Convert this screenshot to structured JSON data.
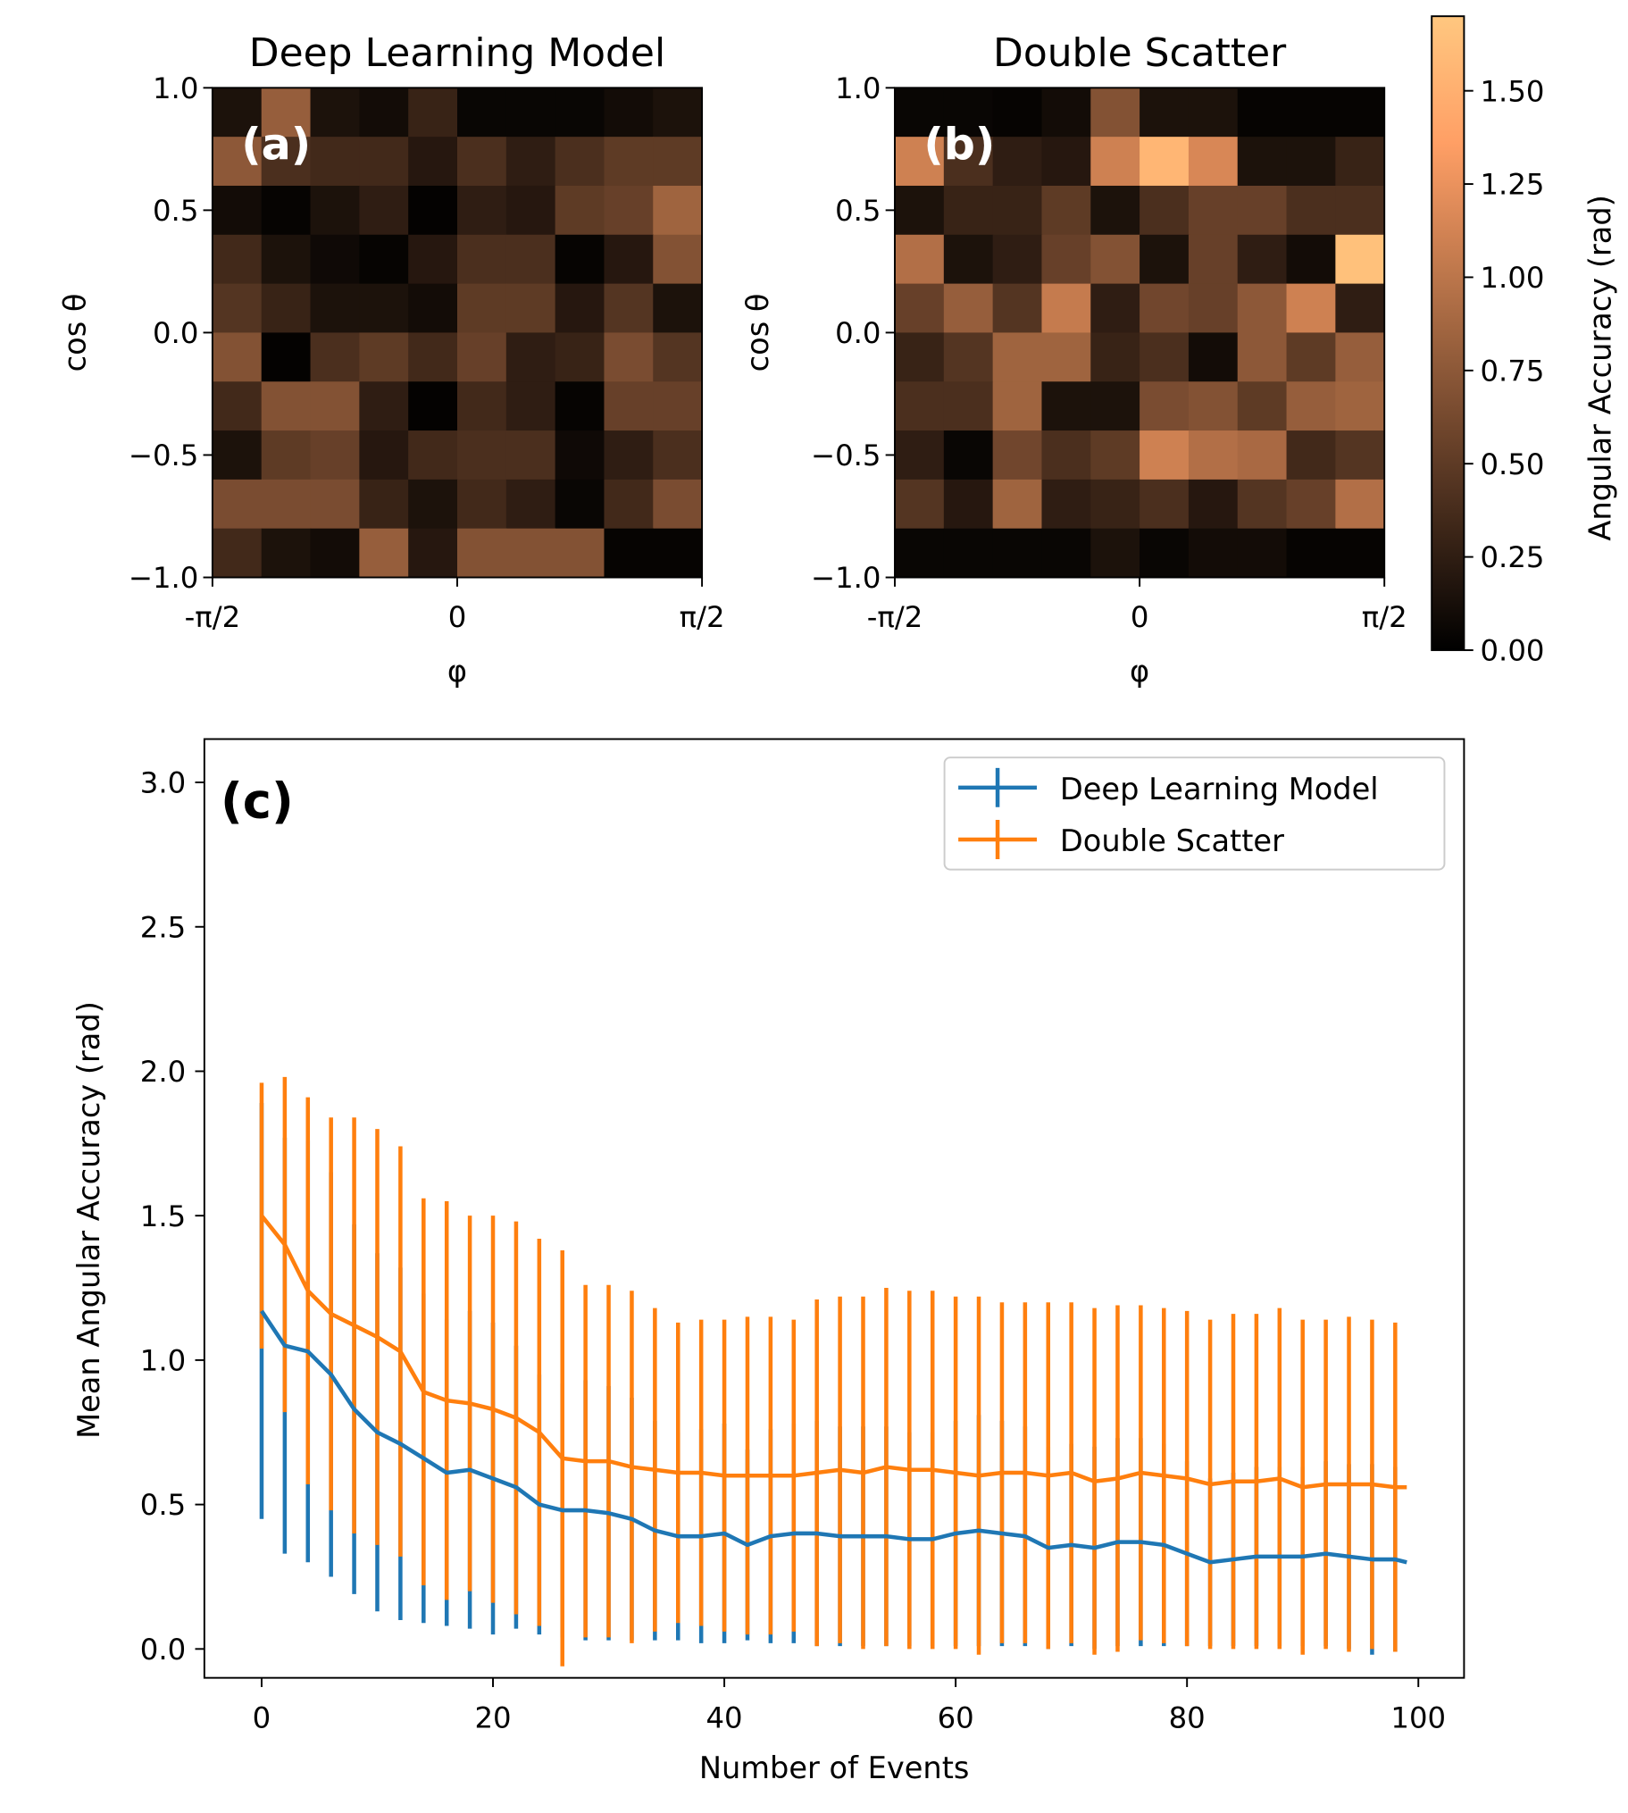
{
  "chart_data": [
    {
      "type": "heatmap",
      "title": "Deep Learning Model",
      "panel_label": "(a)",
      "xlabel": "φ",
      "ylabel": "cos θ",
      "colormap": "copper",
      "clim": [
        0,
        1.7
      ],
      "xlim": [
        -1.5708,
        1.5708
      ],
      "ylim": [
        -1,
        1
      ],
      "xticks": [
        {
          "value": -1.5708,
          "label": "-π/2"
        },
        0,
        {
          "value": 1.5708,
          "label": "π/2"
        }
      ],
      "yticks": [
        {
          "value": -1,
          "label": "−1.0"
        },
        {
          "value": -0.5,
          "label": "−0.5"
        },
        {
          "value": 0,
          "label": "0.0"
        },
        {
          "value": 0.5,
          "label": "0.5"
        },
        {
          "value": 1,
          "label": "1.0"
        }
      ],
      "values": [
        [
          0.15,
          0.8,
          0.15,
          0.1,
          0.3,
          0.05,
          0.05,
          0.05,
          0.1,
          0.15
        ],
        [
          0.75,
          0.4,
          0.35,
          0.35,
          0.2,
          0.4,
          0.25,
          0.4,
          0.5,
          0.5
        ],
        [
          0.1,
          0.03,
          0.15,
          0.25,
          0.02,
          0.25,
          0.2,
          0.5,
          0.55,
          0.85
        ],
        [
          0.35,
          0.15,
          0.08,
          0.03,
          0.2,
          0.4,
          0.4,
          0.03,
          0.2,
          0.7
        ],
        [
          0.45,
          0.3,
          0.15,
          0.15,
          0.1,
          0.5,
          0.5,
          0.2,
          0.45,
          0.15
        ],
        [
          0.7,
          0.02,
          0.4,
          0.5,
          0.35,
          0.55,
          0.25,
          0.3,
          0.65,
          0.45
        ],
        [
          0.35,
          0.7,
          0.7,
          0.25,
          0.02,
          0.35,
          0.25,
          0.03,
          0.55,
          0.55
        ],
        [
          0.15,
          0.5,
          0.55,
          0.2,
          0.35,
          0.4,
          0.4,
          0.08,
          0.25,
          0.4
        ],
        [
          0.65,
          0.65,
          0.65,
          0.3,
          0.15,
          0.35,
          0.25,
          0.05,
          0.35,
          0.65
        ],
        [
          0.35,
          0.15,
          0.1,
          0.8,
          0.2,
          0.7,
          0.7,
          0.7,
          0.03,
          0.03
        ]
      ]
    },
    {
      "type": "heatmap",
      "title": "Double Scatter",
      "panel_label": "(b)",
      "xlabel": "φ",
      "ylabel": "cos θ",
      "colormap": "copper",
      "clim": [
        0,
        1.7
      ],
      "xlim": [
        -1.5708,
        1.5708
      ],
      "ylim": [
        -1,
        1
      ],
      "xticks": [
        {
          "value": -1.5708,
          "label": "-π/2"
        },
        0,
        {
          "value": 1.5708,
          "label": "π/2"
        }
      ],
      "yticks": [
        {
          "value": -1,
          "label": "−1.0"
        },
        {
          "value": -0.5,
          "label": "−0.5"
        },
        {
          "value": 0,
          "label": "0.0"
        },
        {
          "value": 0.5,
          "label": "0.5"
        },
        {
          "value": 1,
          "label": "1.0"
        }
      ],
      "values": [
        [
          0.05,
          0.05,
          0.03,
          0.1,
          0.7,
          0.15,
          0.15,
          0.03,
          0.03,
          0.03
        ],
        [
          1.1,
          0.4,
          0.25,
          0.2,
          1.1,
          1.55,
          1.15,
          0.15,
          0.15,
          0.3
        ],
        [
          0.15,
          0.3,
          0.3,
          0.5,
          0.15,
          0.4,
          0.55,
          0.55,
          0.4,
          0.4
        ],
        [
          0.95,
          0.15,
          0.25,
          0.55,
          0.7,
          0.15,
          0.55,
          0.25,
          0.1,
          1.65
        ],
        [
          0.55,
          0.8,
          0.45,
          1.05,
          0.25,
          0.6,
          0.55,
          0.75,
          1.1,
          0.25
        ],
        [
          0.3,
          0.45,
          0.85,
          0.85,
          0.3,
          0.4,
          0.1,
          0.75,
          0.5,
          0.8
        ],
        [
          0.4,
          0.4,
          0.85,
          0.15,
          0.15,
          0.65,
          0.7,
          0.5,
          0.8,
          0.85
        ],
        [
          0.25,
          0.05,
          0.6,
          0.4,
          0.5,
          1.1,
          0.95,
          0.9,
          0.35,
          0.45
        ],
        [
          0.45,
          0.2,
          0.85,
          0.25,
          0.3,
          0.4,
          0.2,
          0.45,
          0.55,
          0.95
        ],
        [
          0.05,
          0.05,
          0.05,
          0.05,
          0.15,
          0.05,
          0.1,
          0.1,
          0.03,
          0.03
        ]
      ],
      "colorbar": {
        "label": "Angular Accuracy (rad)",
        "ticks": [
          {
            "value": 0,
            "label": "0.00"
          },
          {
            "value": 0.25,
            "label": "0.25"
          },
          {
            "value": 0.5,
            "label": "0.50"
          },
          {
            "value": 0.75,
            "label": "0.75"
          },
          {
            "value": 1,
            "label": "1.00"
          },
          {
            "value": 1.25,
            "label": "1.25"
          },
          {
            "value": 1.5,
            "label": "1.50"
          }
        ]
      }
    },
    {
      "type": "line",
      "panel_label": "(c)",
      "xlabel": "Number of Events",
      "ylabel": "Mean Angular Accuracy (rad)",
      "legend": "upper right",
      "xlim": [
        -4.95,
        103.95
      ],
      "ylim": [
        -0.1,
        3.15
      ],
      "xticks": [
        0,
        20,
        40,
        60,
        80,
        100
      ],
      "yticks": [
        {
          "value": 0,
          "label": "0.0"
        },
        {
          "value": 0.5,
          "label": "0.5"
        },
        {
          "value": 1,
          "label": "1.0"
        },
        {
          "value": 1.5,
          "label": "1.5"
        },
        {
          "value": 2,
          "label": "2.0"
        },
        {
          "value": 2.5,
          "label": "2.5"
        },
        {
          "value": 3,
          "label": "3.0"
        }
      ],
      "x": [
        0,
        2,
        4,
        6,
        8,
        10,
        12,
        14,
        16,
        18,
        20,
        22,
        24,
        26,
        28,
        30,
        32,
        34,
        36,
        38,
        40,
        42,
        44,
        46,
        48,
        50,
        52,
        54,
        56,
        58,
        60,
        62,
        64,
        66,
        68,
        70,
        72,
        74,
        76,
        78,
        80,
        82,
        84,
        86,
        88,
        90,
        92,
        94,
        96,
        98,
        99
      ],
      "series": [
        {
          "name": "Deep Learning Model",
          "color": "#1f77b4",
          "values": [
            1.17,
            1.05,
            1.03,
            0.95,
            0.83,
            0.75,
            0.71,
            0.66,
            0.61,
            0.62,
            0.59,
            0.56,
            0.5,
            0.48,
            0.48,
            0.47,
            0.45,
            0.41,
            0.39,
            0.39,
            0.4,
            0.36,
            0.39,
            0.4,
            0.4,
            0.39,
            0.39,
            0.39,
            0.38,
            0.38,
            0.4,
            0.41,
            0.4,
            0.39,
            0.35,
            0.36,
            0.35,
            0.37,
            0.37,
            0.36,
            0.33,
            0.3,
            0.31,
            0.32,
            0.32,
            0.32,
            0.33,
            0.32,
            0.31,
            0.31,
            0.3
          ],
          "errors": [
            0.72,
            0.72,
            0.73,
            0.7,
            0.64,
            0.62,
            0.61,
            0.57,
            0.53,
            0.55,
            0.54,
            0.49,
            0.45,
            0.44,
            0.45,
            0.44,
            0.42,
            0.38,
            0.36,
            0.37,
            0.38,
            0.33,
            0.37,
            0.38,
            0.39,
            0.38,
            0.38,
            0.38,
            0.37,
            0.37,
            0.39,
            0.4,
            0.39,
            0.38,
            0.35,
            0.35,
            0.35,
            0.36,
            0.36,
            0.35,
            0.32,
            0.29,
            0.3,
            0.31,
            0.31,
            0.31,
            0.32,
            0.32,
            0.33,
            0.32,
            null
          ]
        },
        {
          "name": "Double Scatter",
          "color": "#ff7f0e",
          "values": [
            1.5,
            1.4,
            1.24,
            1.16,
            1.12,
            1.08,
            1.03,
            0.89,
            0.86,
            0.85,
            0.83,
            0.8,
            0.75,
            0.66,
            0.65,
            0.65,
            0.63,
            0.62,
            0.61,
            0.61,
            0.6,
            0.6,
            0.6,
            0.6,
            0.61,
            0.62,
            0.61,
            0.63,
            0.62,
            0.62,
            0.61,
            0.6,
            0.61,
            0.61,
            0.6,
            0.61,
            0.58,
            0.59,
            0.61,
            0.6,
            0.59,
            0.57,
            0.58,
            0.58,
            0.59,
            0.56,
            0.57,
            0.57,
            0.57,
            0.56,
            0.56
          ],
          "errors": [
            0.46,
            0.58,
            0.67,
            0.68,
            0.72,
            0.72,
            0.71,
            0.67,
            0.69,
            0.65,
            0.67,
            0.68,
            0.67,
            0.72,
            0.61,
            0.61,
            0.61,
            0.56,
            0.52,
            0.53,
            0.54,
            0.55,
            0.55,
            0.54,
            0.6,
            0.6,
            0.61,
            0.62,
            0.62,
            0.62,
            0.61,
            0.62,
            0.59,
            0.59,
            0.6,
            0.59,
            0.6,
            0.6,
            0.58,
            0.58,
            0.58,
            0.57,
            0.58,
            0.58,
            0.59,
            0.58,
            0.57,
            0.58,
            0.57,
            0.57,
            null
          ]
        }
      ]
    }
  ]
}
